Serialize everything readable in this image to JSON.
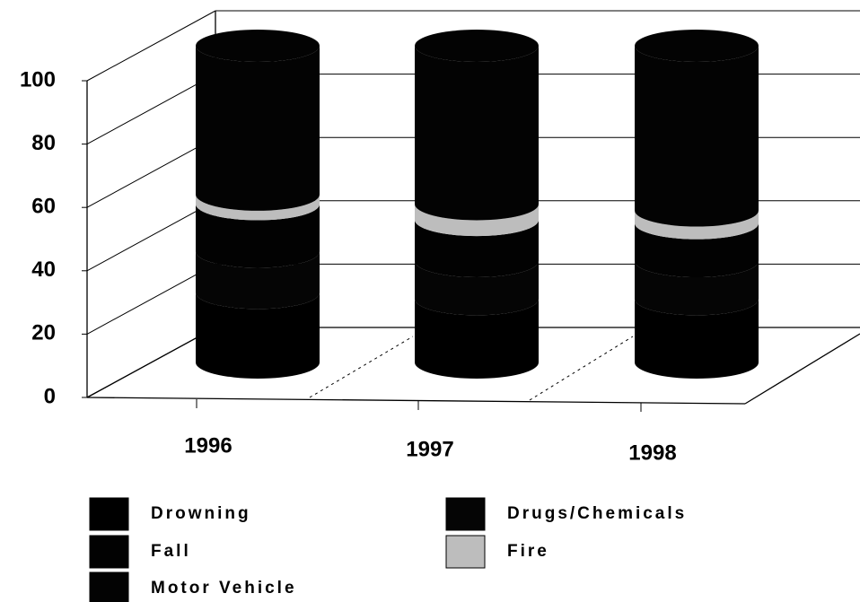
{
  "chart_data": {
    "type": "bar3d_stacked_cylinder",
    "categories": [
      "1996",
      "1997",
      "1998"
    ],
    "series": [
      {
        "name": "Drowning",
        "color": "#000000",
        "values": [
          22,
          20,
          20
        ]
      },
      {
        "name": "Drugs/Chemicals",
        "color": "#050505",
        "values": [
          13,
          12,
          12
        ]
      },
      {
        "name": "Fall",
        "color": "#020202",
        "values": [
          15,
          13,
          12
        ]
      },
      {
        "name": "Fire",
        "color": "#bdbdbd",
        "values": [
          3,
          5,
          4
        ]
      },
      {
        "name": "Motor Vehicle",
        "color": "#030303",
        "values": [
          47,
          50,
          52
        ]
      }
    ],
    "ylim": [
      0,
      100
    ],
    "yticks": [
      0,
      20,
      40,
      60,
      80,
      100
    ],
    "grid": true
  }
}
